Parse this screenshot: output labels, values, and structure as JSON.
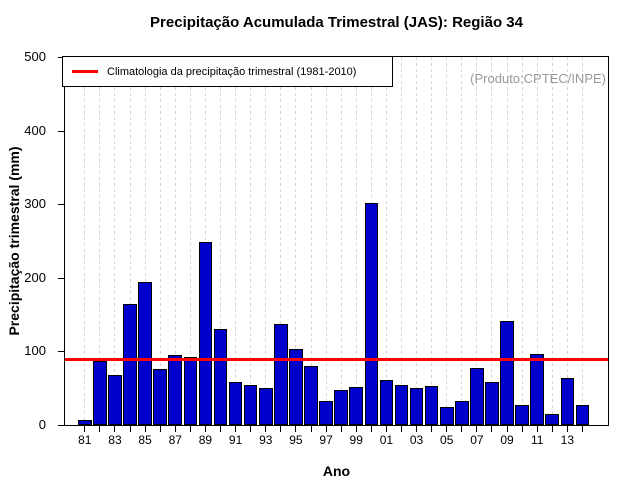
{
  "chart_data": {
    "type": "bar",
    "title": "Precipitação Acumulada Trimestral (JAS): Região 34",
    "xlabel": "Ano",
    "ylabel": "Precipitação trimestral (mm)",
    "annotation": "(Produto:CPTEC/INPE)",
    "legend": {
      "label": "Climatologia da precipitação trimestral (1981-2010)",
      "color": "#ff0000",
      "position": "top-left"
    },
    "reference_line": {
      "name": "climatologia",
      "value": 90,
      "color": "#ff0000"
    },
    "ylim": [
      0,
      500
    ],
    "yticks": [
      0,
      100,
      200,
      300,
      400,
      500
    ],
    "grid": "vertical-dashed",
    "categories": [
      "81",
      "82",
      "83",
      "84",
      "85",
      "86",
      "87",
      "88",
      "89",
      "90",
      "91",
      "92",
      "93",
      "94",
      "95",
      "96",
      "97",
      "98",
      "99",
      "00",
      "01",
      "02",
      "03",
      "04",
      "05",
      "06",
      "07",
      "08",
      "09",
      "10",
      "11",
      "12",
      "13",
      "14"
    ],
    "values": [
      7,
      87,
      68,
      164,
      194,
      76,
      95,
      93,
      248,
      130,
      58,
      54,
      50,
      137,
      103,
      80,
      33,
      47,
      52,
      302,
      61,
      55,
      50,
      53,
      25,
      33,
      78,
      58,
      142,
      27,
      97,
      15,
      64,
      27
    ],
    "xtick_label_step": 2,
    "xtick_labels_visible": [
      "81",
      "83",
      "85",
      "87",
      "89",
      "91",
      "93",
      "95",
      "97",
      "99",
      "01",
      "03",
      "05",
      "07",
      "09",
      "11",
      "13"
    ],
    "colors": {
      "bar_fill": "#0000cc",
      "bar_border": "#000000",
      "grid": "#d4d4d4",
      "annotation_text": "#999999",
      "axis": "#000000"
    }
  }
}
